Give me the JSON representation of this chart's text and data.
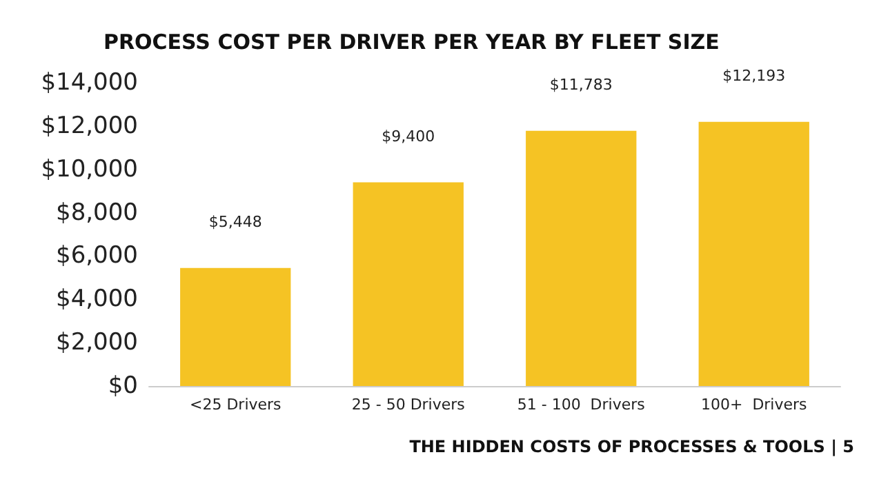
{
  "chart_data": {
    "type": "bar",
    "title": "PROCESS COST PER DRIVER PER YEAR BY FLEET SIZE",
    "categories": [
      "<25 Drivers",
      "25 - 50 Drivers",
      "51 - 100  Drivers",
      "100+  Drivers"
    ],
    "values": [
      5448,
      9400,
      11783,
      12193
    ],
    "value_labels": [
      "$5,448",
      "$9,400",
      "$11,783",
      "$12,193"
    ],
    "color": "#f5c324",
    "ylim": [
      0,
      14000
    ],
    "yticks": [
      {
        "value": 0,
        "label": "$0"
      },
      {
        "value": 2000,
        "label": "$2,000"
      },
      {
        "value": 4000,
        "label": "$4,000"
      },
      {
        "value": 6000,
        "label": "$6,000"
      },
      {
        "value": 8000,
        "label": "$8,000"
      },
      {
        "value": 10000,
        "label": "$10,000"
      },
      {
        "value": 12000,
        "label": "$12,000"
      },
      {
        "value": 14000,
        "label": "$14,000"
      }
    ],
    "grid": false,
    "annotations": [
      "THE HIDDEN COSTS OF PROCESSES & TOOLS | 5"
    ]
  }
}
